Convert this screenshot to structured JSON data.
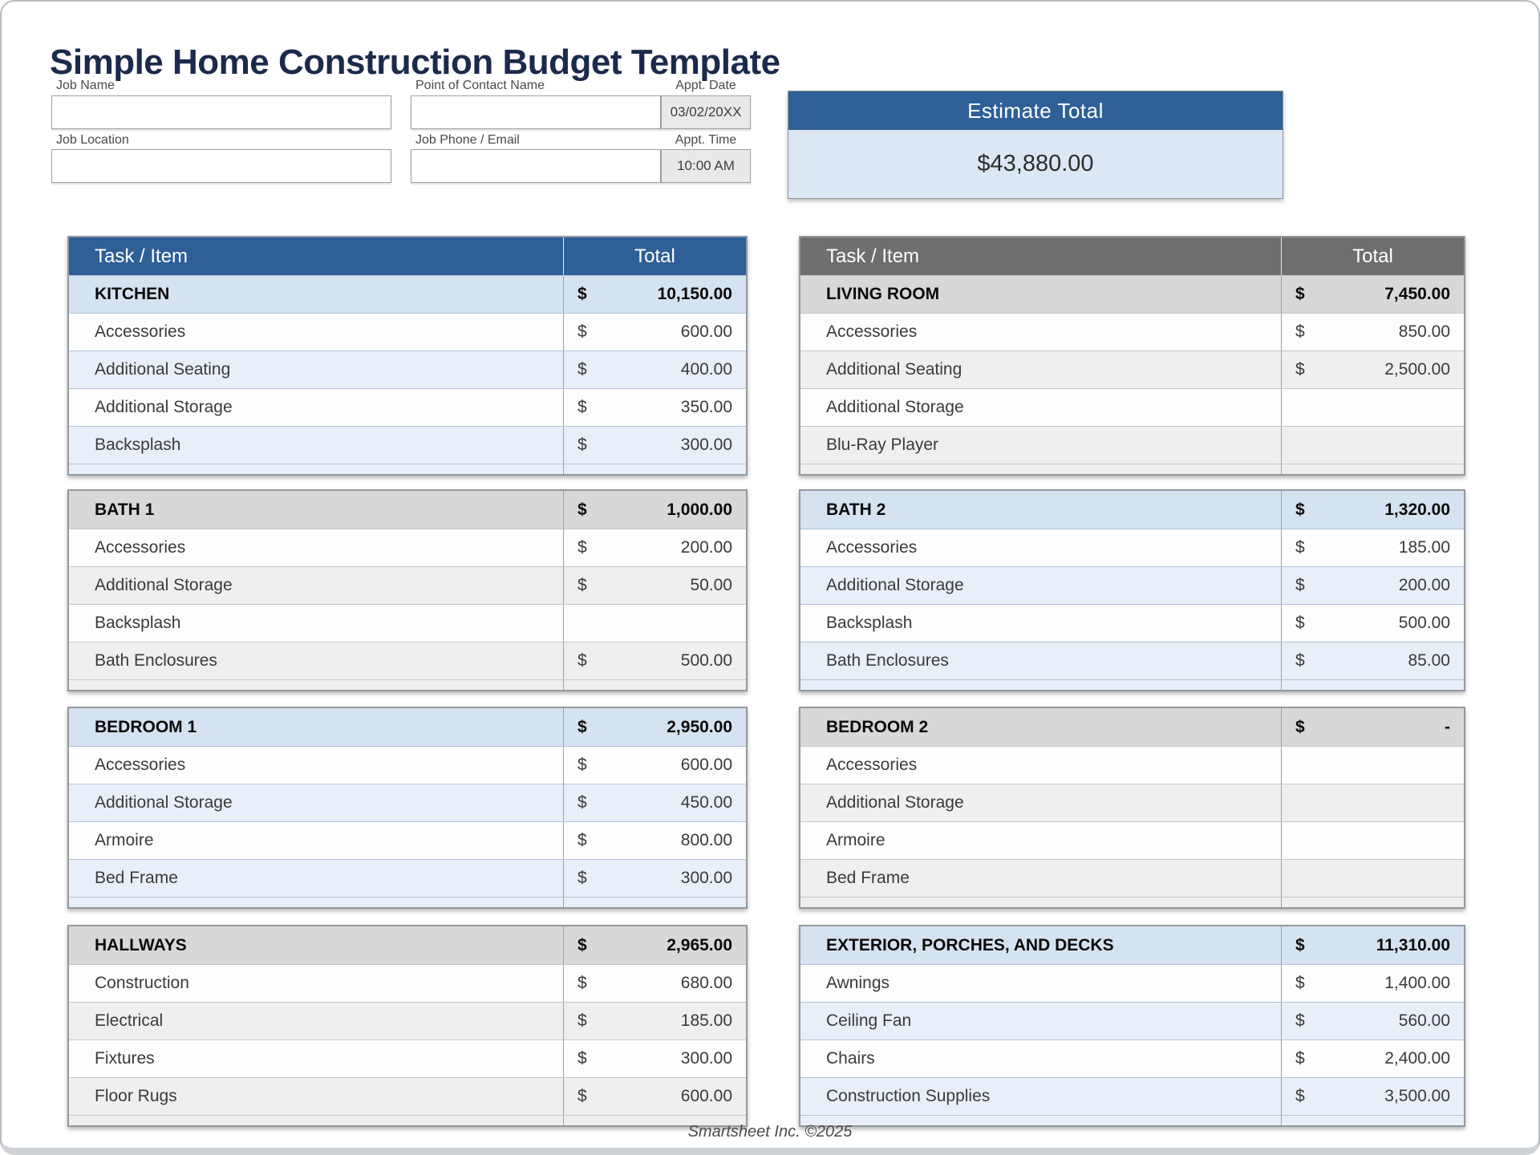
{
  "title": "Simple Home Construction Budget Template",
  "form": {
    "fields": [
      {
        "label": "Job Name",
        "value": ""
      },
      {
        "label": "Job Location",
        "value": ""
      },
      {
        "label": "Point of Contact Name",
        "value": ""
      },
      {
        "label": "Job Phone / Email",
        "value": ""
      }
    ],
    "appt_date": {
      "label": "Appt. Date",
      "value": "03/02/20XX"
    },
    "appt_time": {
      "label": "Appt. Time",
      "value": "10:00 AM"
    }
  },
  "estimate": {
    "label": "Estimate Total",
    "value": "$43,880.00"
  },
  "table_header": {
    "task": "Task / Item",
    "total": "Total"
  },
  "currency_symbol": "$",
  "tables": [
    {
      "name": "KITCHEN",
      "theme": "blue",
      "has_header": true,
      "total": "10,150.00",
      "rows": [
        {
          "item": "Accessories",
          "amount": "600.00"
        },
        {
          "item": "Additional Seating",
          "amount": "400.00"
        },
        {
          "item": "Additional Storage",
          "amount": "350.00"
        },
        {
          "item": "Backsplash",
          "amount": "300.00"
        }
      ]
    },
    {
      "name": "LIVING ROOM",
      "theme": "gray",
      "has_header": true,
      "total": "7,450.00",
      "rows": [
        {
          "item": "Accessories",
          "amount": "850.00"
        },
        {
          "item": "Additional Seating",
          "amount": "2,500.00"
        },
        {
          "item": "Additional Storage",
          "amount": ""
        },
        {
          "item": "Blu-Ray Player",
          "amount": ""
        }
      ]
    },
    {
      "name": "BATH 1",
      "theme": "gray",
      "has_header": false,
      "total": "1,000.00",
      "rows": [
        {
          "item": "Accessories",
          "amount": "200.00"
        },
        {
          "item": "Additional Storage",
          "amount": "50.00"
        },
        {
          "item": "Backsplash",
          "amount": ""
        },
        {
          "item": "Bath Enclosures",
          "amount": "500.00"
        }
      ]
    },
    {
      "name": "BATH 2",
      "theme": "blue",
      "has_header": false,
      "total": "1,320.00",
      "rows": [
        {
          "item": "Accessories",
          "amount": "185.00"
        },
        {
          "item": "Additional Storage",
          "amount": "200.00"
        },
        {
          "item": "Backsplash",
          "amount": "500.00"
        },
        {
          "item": "Bath Enclosures",
          "amount": "85.00"
        }
      ]
    },
    {
      "name": "BEDROOM 1",
      "theme": "blue",
      "has_header": false,
      "total": "2,950.00",
      "rows": [
        {
          "item": "Accessories",
          "amount": "600.00"
        },
        {
          "item": "Additional Storage",
          "amount": "450.00"
        },
        {
          "item": "Armoire",
          "amount": "800.00"
        },
        {
          "item": "Bed Frame",
          "amount": "300.00"
        }
      ]
    },
    {
      "name": "BEDROOM 2",
      "theme": "gray",
      "has_header": false,
      "total": "-",
      "rows": [
        {
          "item": "Accessories",
          "amount": ""
        },
        {
          "item": "Additional Storage",
          "amount": ""
        },
        {
          "item": "Armoire",
          "amount": ""
        },
        {
          "item": "Bed Frame",
          "amount": ""
        }
      ]
    },
    {
      "name": "HALLWAYS",
      "theme": "gray",
      "has_header": false,
      "total": "2,965.00",
      "rows": [
        {
          "item": "Construction",
          "amount": "680.00"
        },
        {
          "item": "Electrical",
          "amount": "185.00"
        },
        {
          "item": "Fixtures",
          "amount": "300.00"
        },
        {
          "item": "Floor Rugs",
          "amount": "600.00"
        }
      ]
    },
    {
      "name": "EXTERIOR, PORCHES, AND DECKS",
      "theme": "blue",
      "has_header": false,
      "total": "11,310.00",
      "rows": [
        {
          "item": "Awnings",
          "amount": "1,400.00"
        },
        {
          "item": "Ceiling Fan",
          "amount": "560.00"
        },
        {
          "item": "Chairs",
          "amount": "2,400.00"
        },
        {
          "item": "Construction Supplies",
          "amount": "3,500.00"
        }
      ]
    }
  ],
  "footer": "Smartsheet Inc. ©2025",
  "colors": {
    "title_navy": "#1b2a4c",
    "accent_blue": "#2e5f96",
    "section_blue": "#d5e2f1",
    "alt_blue": "#e8eff8",
    "accent_gray": "#6e6e6e",
    "section_gray": "#d8d8d8",
    "alt_gray": "#efefef",
    "estimate_body_blue": "#dbe7f5",
    "input_gray_bg": "#e9e9e9"
  }
}
